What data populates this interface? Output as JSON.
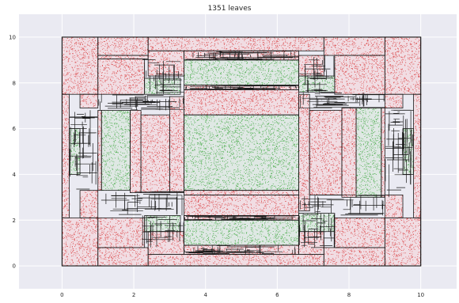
{
  "chart_data": {
    "type": "scatter",
    "title": "1351 leaves",
    "xlabel": "",
    "ylabel": "",
    "xlim": [
      -1.2,
      11.0
    ],
    "ylim": [
      -1.0,
      11.0
    ],
    "xticks": [
      0,
      2,
      4,
      6,
      8,
      10
    ],
    "yticks": [
      0,
      2,
      4,
      6,
      8,
      10
    ],
    "grid": true,
    "background": "#eaeaf2",
    "grid_color": "#ffffff",
    "class_colors": {
      "red": "#d62728",
      "green": "#2ca02c"
    },
    "outer_region": [
      0,
      0,
      10,
      10
    ],
    "regions": [
      {
        "x0": 0,
        "x1": 1.0,
        "y0": 0,
        "y1": 2.1,
        "cls": "red"
      },
      {
        "x0": 0,
        "x1": 1.0,
        "y0": 7.5,
        "y1": 10,
        "cls": "red"
      },
      {
        "x0": 9.0,
        "x1": 10,
        "y0": 0,
        "y1": 2.1,
        "cls": "red"
      },
      {
        "x0": 9.0,
        "x1": 10,
        "y0": 7.5,
        "y1": 10,
        "cls": "red"
      },
      {
        "x0": 1.0,
        "x1": 2.4,
        "y0": 0,
        "y1": 0.8,
        "cls": "red"
      },
      {
        "x0": 7.3,
        "x1": 9.0,
        "y0": 0,
        "y1": 0.8,
        "cls": "red"
      },
      {
        "x0": 1.0,
        "x1": 2.4,
        "y0": 9.2,
        "y1": 10,
        "cls": "red"
      },
      {
        "x0": 7.3,
        "x1": 9.0,
        "y0": 9.2,
        "y1": 10,
        "cls": "red"
      },
      {
        "x0": 2.4,
        "x1": 7.3,
        "y0": 9.4,
        "y1": 10,
        "cls": "red"
      },
      {
        "x0": 2.4,
        "x1": 7.3,
        "y0": 0,
        "y1": 0.5,
        "cls": "red"
      },
      {
        "x0": 1.0,
        "x1": 2.4,
        "y0": 9.05,
        "y1": 9.2,
        "cls": "red"
      },
      {
        "x0": 3.4,
        "x1": 6.6,
        "y0": 7.9,
        "y1": 9.0,
        "cls": "green"
      },
      {
        "x0": 3.4,
        "x1": 6.6,
        "y0": 0.9,
        "y1": 2.0,
        "cls": "green"
      },
      {
        "x0": 3.4,
        "x1": 6.6,
        "y0": 6.6,
        "y1": 7.7,
        "cls": "red"
      },
      {
        "x0": 3.4,
        "x1": 6.6,
        "y0": 2.2,
        "y1": 3.1,
        "cls": "red"
      },
      {
        "x0": 3.4,
        "x1": 6.6,
        "y0": 3.3,
        "y1": 6.6,
        "cls": "green"
      },
      {
        "x0": 2.2,
        "x1": 3.0,
        "y0": 3.2,
        "y1": 6.6,
        "cls": "red"
      },
      {
        "x0": 6.9,
        "x1": 7.8,
        "y0": 3.1,
        "y1": 6.8,
        "cls": "red"
      },
      {
        "x0": 1.1,
        "x1": 1.9,
        "y0": 3.3,
        "y1": 6.8,
        "cls": "green"
      },
      {
        "x0": 8.2,
        "x1": 8.9,
        "y0": 3.0,
        "y1": 6.9,
        "cls": "green"
      },
      {
        "x0": 2.3,
        "x1": 3.3,
        "y0": 7.5,
        "y1": 8.2,
        "cls": "green"
      },
      {
        "x0": 6.6,
        "x1": 7.6,
        "y0": 7.6,
        "y1": 8.3,
        "cls": "green"
      },
      {
        "x0": 2.3,
        "x1": 3.3,
        "y0": 1.5,
        "y1": 2.2,
        "cls": "green"
      },
      {
        "x0": 6.6,
        "x1": 7.6,
        "y0": 1.5,
        "y1": 2.3,
        "cls": "green"
      },
      {
        "x0": 0.2,
        "x1": 0.5,
        "y0": 4.0,
        "y1": 6.0,
        "cls": "green"
      },
      {
        "x0": 9.5,
        "x1": 9.8,
        "y0": 4.0,
        "y1": 6.0,
        "cls": "green"
      },
      {
        "x0": 0,
        "x1": 0.2,
        "y0": 2.1,
        "y1": 7.5,
        "cls": "red"
      },
      {
        "x0": 9.8,
        "x1": 10,
        "y0": 2.1,
        "y1": 7.5,
        "cls": "red"
      },
      {
        "x0": 1.9,
        "x1": 2.2,
        "y0": 3.2,
        "y1": 6.8,
        "cls": "red"
      },
      {
        "x0": 7.8,
        "x1": 8.2,
        "y0": 3.0,
        "y1": 6.9,
        "cls": "red"
      },
      {
        "x0": 0.5,
        "x1": 1.0,
        "y0": 2.1,
        "y1": 3.3,
        "cls": "red"
      },
      {
        "x0": 0.5,
        "x1": 1.0,
        "y0": 6.9,
        "y1": 7.5,
        "cls": "red"
      },
      {
        "x0": 9.0,
        "x1": 9.5,
        "y0": 2.1,
        "y1": 3.1,
        "cls": "red"
      },
      {
        "x0": 9.0,
        "x1": 9.5,
        "y0": 6.9,
        "y1": 7.5,
        "cls": "red"
      },
      {
        "x0": 1.0,
        "x1": 2.3,
        "y0": 7.5,
        "y1": 9.05,
        "cls": "red"
      },
      {
        "x0": 7.6,
        "x1": 9.0,
        "y0": 7.5,
        "y1": 9.2,
        "cls": "red"
      },
      {
        "x0": 1.0,
        "x1": 2.3,
        "y0": 0.8,
        "y1": 2.1,
        "cls": "red"
      },
      {
        "x0": 7.6,
        "x1": 9.0,
        "y0": 0.8,
        "y1": 2.1,
        "cls": "red"
      },
      {
        "x0": 2.4,
        "x1": 3.4,
        "y0": 8.3,
        "y1": 9.4,
        "cls": "red"
      },
      {
        "x0": 6.6,
        "x1": 7.3,
        "y0": 8.3,
        "y1": 9.2,
        "cls": "red"
      },
      {
        "x0": 2.4,
        "x1": 3.4,
        "y0": 0.5,
        "y1": 1.5,
        "cls": "red"
      },
      {
        "x0": 6.6,
        "x1": 7.3,
        "y0": 0.5,
        "y1": 1.5,
        "cls": "red"
      },
      {
        "x0": 3.0,
        "x1": 3.4,
        "y0": 3.2,
        "y1": 7.4,
        "cls": "red"
      },
      {
        "x0": 6.6,
        "x1": 6.9,
        "y0": 2.4,
        "y1": 7.5,
        "cls": "red"
      },
      {
        "x0": 1.0,
        "x1": 1.1,
        "y0": 3.3,
        "y1": 6.8,
        "cls": "red"
      },
      {
        "x0": 8.9,
        "x1": 9.0,
        "y0": 3.0,
        "y1": 6.9,
        "cls": "red"
      },
      {
        "x0": 3.4,
        "x1": 6.6,
        "y0": 7.7,
        "y1": 7.9,
        "cls": "red"
      },
      {
        "x0": 3.4,
        "x1": 6.6,
        "y0": 2.0,
        "y1": 2.2,
        "cls": "red"
      },
      {
        "x0": 3.4,
        "x1": 6.6,
        "y0": 9.0,
        "y1": 9.4,
        "cls": "red"
      },
      {
        "x0": 3.4,
        "x1": 6.6,
        "y0": 0.5,
        "y1": 0.9,
        "cls": "red"
      },
      {
        "x0": 3.4,
        "x1": 6.6,
        "y0": 3.1,
        "y1": 3.3,
        "cls": "red"
      },
      {
        "x0": 3.4,
        "x1": 6.6,
        "y0": 6.6,
        "y1": 6.6,
        "cls": "red"
      }
    ]
  }
}
